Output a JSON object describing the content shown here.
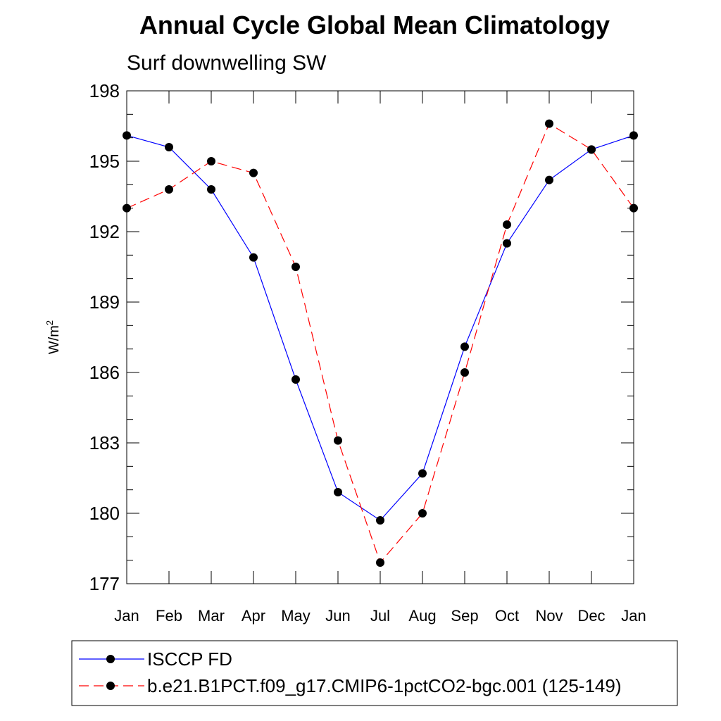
{
  "chart_data": {
    "type": "line",
    "title": "Annual Cycle Global Mean Climatology",
    "subtitle": "Surf downwelling SW",
    "ylabel": "W/m",
    "ylabel_superscript": "2",
    "xlabel": "",
    "categories": [
      "Jan",
      "Feb",
      "Mar",
      "Apr",
      "May",
      "Jun",
      "Jul",
      "Aug",
      "Sep",
      "Oct",
      "Nov",
      "Dec",
      "Jan"
    ],
    "ylim": [
      177,
      198
    ],
    "yticks": [
      177,
      180,
      183,
      186,
      189,
      192,
      195,
      198
    ],
    "grid": false,
    "legend_position": "bottom",
    "series": [
      {
        "name": "ISCCP FD",
        "color": "#0000ff",
        "dash": "solid",
        "marker": "filled-circle",
        "values": [
          196.1,
          195.6,
          193.8,
          190.9,
          185.7,
          180.9,
          179.7,
          181.7,
          187.1,
          191.5,
          194.2,
          195.5,
          196.1
        ]
      },
      {
        "name": "b.e21.B1PCT.f09_g17.CMIP6-1pctCO2-bgc.001 (125-149)",
        "color": "#ff0000",
        "dash": "dashed",
        "marker": "filled-circle",
        "values": [
          193.0,
          193.8,
          195.0,
          194.5,
          190.5,
          183.1,
          177.9,
          180.0,
          186.0,
          192.3,
          196.6,
          195.5,
          193.0
        ]
      }
    ]
  }
}
